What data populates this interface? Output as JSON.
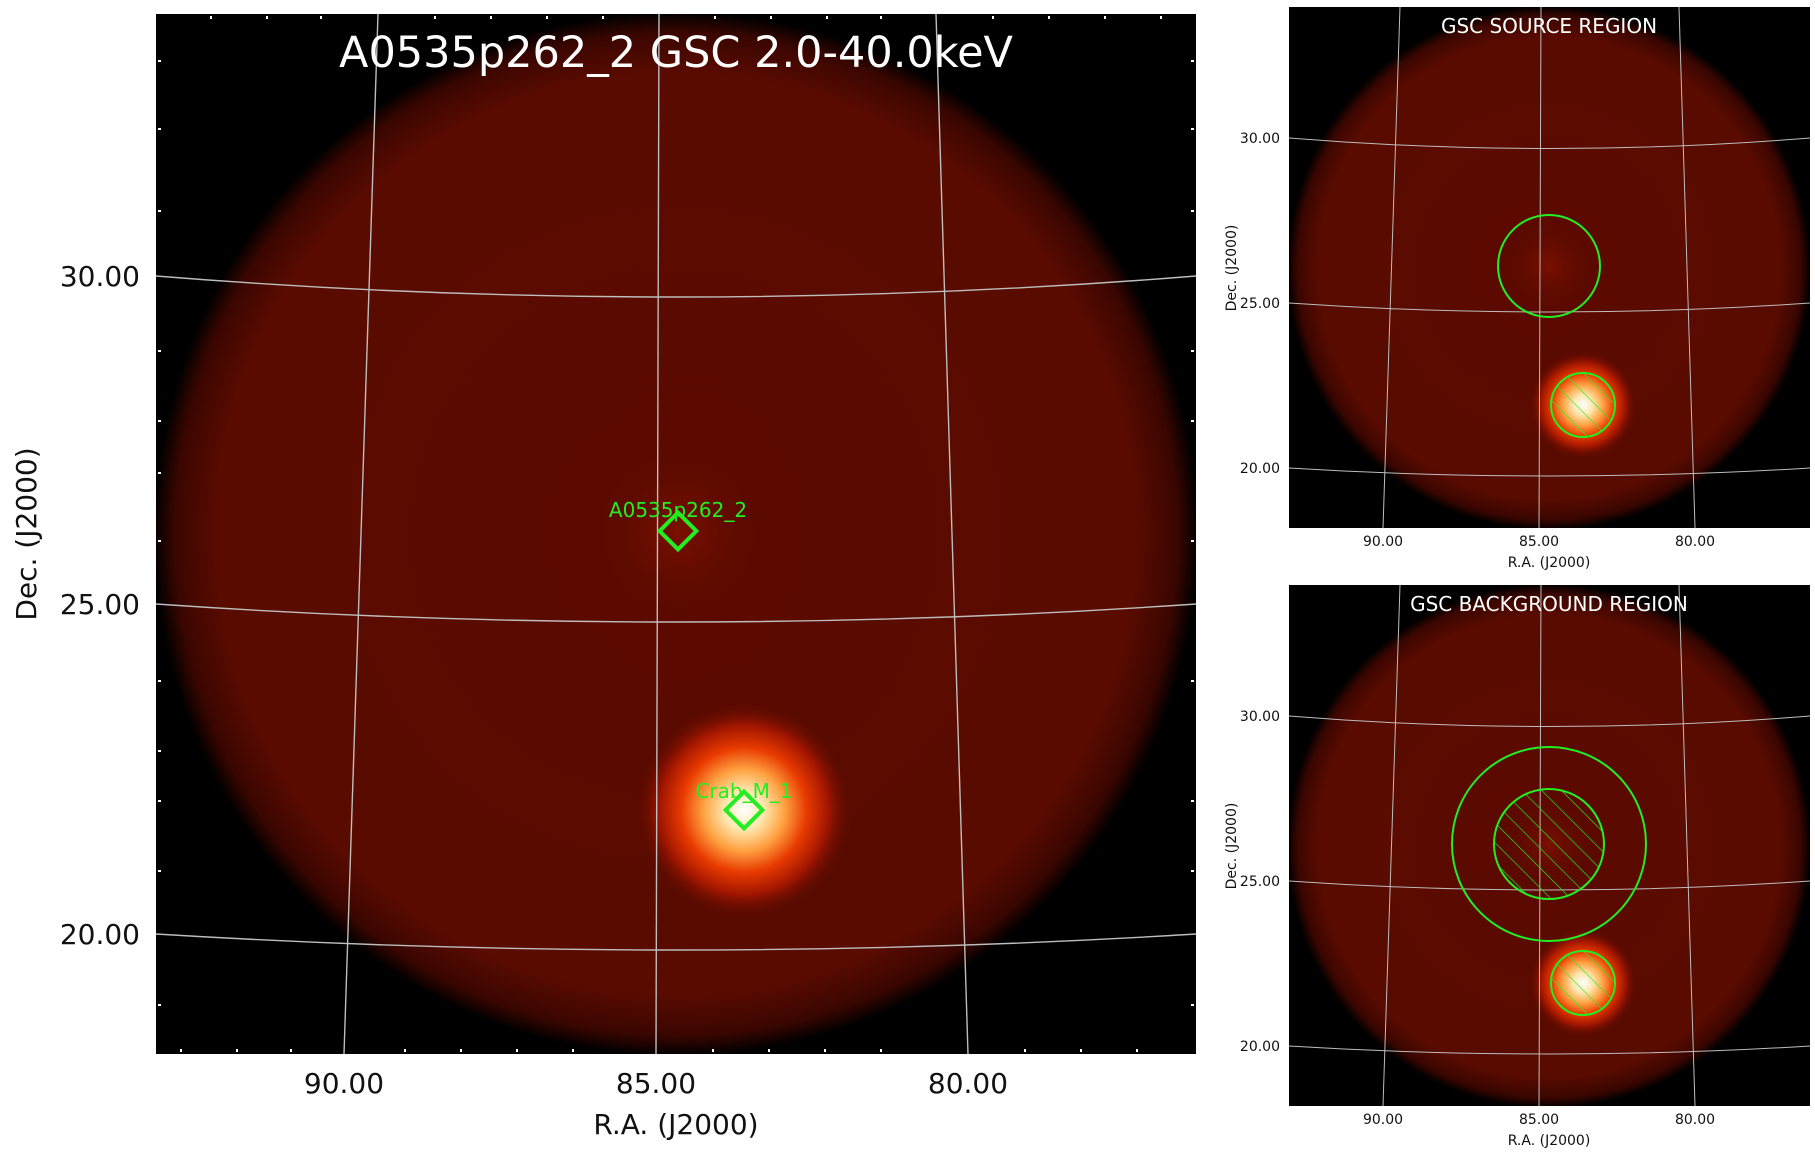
{
  "main": {
    "title": "A0535p262_2 GSC 2.0-40.0keV",
    "xlabel": "R.A. (J2000)",
    "ylabel": "Dec. (J2000)",
    "xticks": [
      "90.00",
      "85.00",
      "80.00"
    ],
    "yticks": [
      "30.00",
      "25.00",
      "20.00"
    ],
    "markers": [
      {
        "label": "A0535p262_2"
      },
      {
        "label": "Crab_M_1"
      }
    ]
  },
  "source_panel": {
    "title": "GSC SOURCE REGION",
    "xlabel": "R.A. (J2000)",
    "ylabel": "Dec. (J2000)",
    "xticks": [
      "90.00",
      "85.00",
      "80.00"
    ],
    "yticks": [
      "30.00",
      "25.00",
      "20.00"
    ]
  },
  "background_panel": {
    "title": "GSC BACKGROUND REGION",
    "xlabel": "R.A. (J2000)",
    "ylabel": "Dec. (J2000)",
    "xticks": [
      "90.00",
      "85.00",
      "80.00"
    ],
    "yticks": [
      "30.00",
      "25.00",
      "20.00"
    ]
  },
  "colors": {
    "image_bg": "#000000",
    "field": "#5e0b00",
    "marker": "#22ee22",
    "grid": "#bdbdbd",
    "title_text": "#ffffff"
  }
}
